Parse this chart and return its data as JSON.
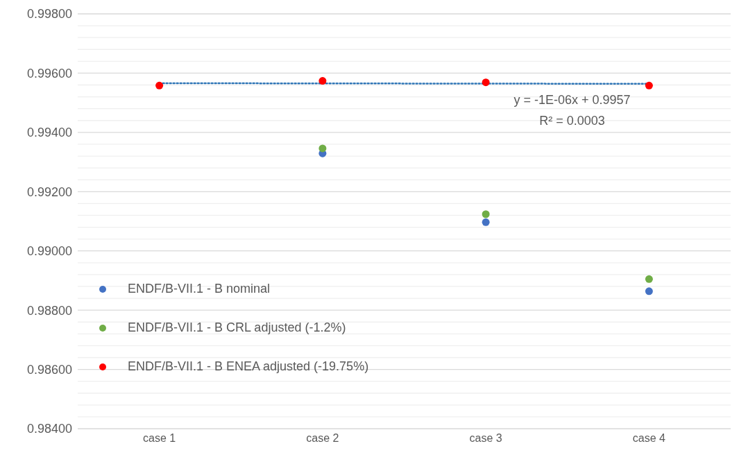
{
  "chart_data": {
    "type": "scatter",
    "categories": [
      "case 1",
      "case 2",
      "case 3",
      "case 4"
    ],
    "series": [
      {
        "name": "ENDF/B-VII.1 - B nominal",
        "color": "#4472c4",
        "values": [
          null,
          0.99329,
          0.99097,
          0.98864
        ]
      },
      {
        "name": "ENDF/B-VII.1 - B CRL adjusted (-1.2%)",
        "color": "#70ad47",
        "values": [
          null,
          0.99346,
          0.99124,
          0.98905
        ]
      },
      {
        "name": "ENDF/B-VII.1 - B ENEA adjusted (-19.75%)",
        "color": "#ff0000",
        "values": [
          0.99558,
          0.99574,
          0.99569,
          0.99558
        ]
      },
      {
        "type": "line",
        "color": "#2e75b6",
        "line_style": "dotted",
        "marker": "none",
        "values": [
          0.99566,
          null,
          null,
          0.99564
        ]
      }
    ],
    "ylim": [
      0.984,
      0.998
    ],
    "yticks": [
      {
        "value": 0.984,
        "label": "0.98400"
      },
      {
        "value": 0.9844,
        "label": null
      },
      {
        "value": 0.9848,
        "label": null
      },
      {
        "value": 0.9852,
        "label": null
      },
      {
        "value": 0.9856,
        "label": null
      },
      {
        "value": 0.986,
        "label": "0.98600"
      },
      {
        "value": 0.9864,
        "label": null
      },
      {
        "value": 0.9868,
        "label": null
      },
      {
        "value": 0.9872,
        "label": null
      },
      {
        "value": 0.9876,
        "label": null
      },
      {
        "value": 0.988,
        "label": "0.98800"
      },
      {
        "value": 0.9884,
        "label": null
      },
      {
        "value": 0.9888,
        "label": null
      },
      {
        "value": 0.9892,
        "label": null
      },
      {
        "value": 0.9896,
        "label": null
      },
      {
        "value": 0.99,
        "label": "0.99000"
      },
      {
        "value": 0.9904,
        "label": null
      },
      {
        "value": 0.9908,
        "label": null
      },
      {
        "value": 0.9912,
        "label": null
      },
      {
        "value": 0.9916,
        "label": null
      },
      {
        "value": 0.992,
        "label": "0.99200"
      },
      {
        "value": 0.9924,
        "label": null
      },
      {
        "value": 0.9928,
        "label": null
      },
      {
        "value": 0.9932,
        "label": null
      },
      {
        "value": 0.9936,
        "label": null
      },
      {
        "value": 0.994,
        "label": "0.99400"
      },
      {
        "value": 0.9944,
        "label": null
      },
      {
        "value": 0.9948,
        "label": null
      },
      {
        "value": 0.9952,
        "label": null
      },
      {
        "value": 0.9956,
        "label": null
      },
      {
        "value": 0.996,
        "label": "0.99600"
      },
      {
        "value": 0.9964,
        "label": null
      },
      {
        "value": 0.9968,
        "label": null
      },
      {
        "value": 0.9972,
        "label": null
      },
      {
        "value": 0.9976,
        "label": null
      },
      {
        "value": 0.998,
        "label": "0.99800"
      }
    ],
    "grid": "y",
    "legend": "left",
    "marker": "circle",
    "annotations": [
      "y = -1E-06x + 0.9957",
      "R² = 0.0003"
    ]
  }
}
